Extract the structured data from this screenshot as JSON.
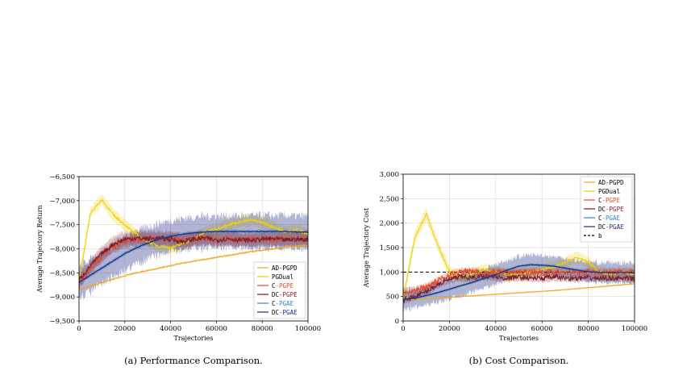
{
  "chart_data": [
    {
      "type": "line",
      "caption": "(a) Performance Comparison.",
      "xlabel": "Trajectories",
      "ylabel": "Average Trajectory Return",
      "xlim": [
        0,
        100000
      ],
      "ylim": [
        -9500,
        -6500
      ],
      "xticks": [
        0,
        20000,
        40000,
        60000,
        80000,
        100000
      ],
      "xtick_labels": [
        "0",
        "20000",
        "40000",
        "60000",
        "80000",
        "100000"
      ],
      "yticks": [
        -9500,
        -9000,
        -8500,
        -8000,
        -7500,
        -7000,
        -6500
      ],
      "ytick_labels": [
        "−9,500",
        "−9,000",
        "−8,500",
        "−8,000",
        "−7,500",
        "−7,000",
        "−6,500"
      ],
      "grid": true,
      "legend_position": "bottom-right",
      "x": [
        0,
        5000,
        10000,
        15000,
        20000,
        25000,
        30000,
        35000,
        40000,
        45000,
        50000,
        55000,
        60000,
        65000,
        70000,
        75000,
        80000,
        85000,
        90000,
        95000,
        100000
      ],
      "series": [
        {
          "name": "AD-PGPD",
          "color": "#f5a623",
          "band": 20,
          "noise": 12,
          "values": [
            -8850,
            -8780,
            -8700,
            -8630,
            -8560,
            -8500,
            -8450,
            -8400,
            -8350,
            -8300,
            -8260,
            -8220,
            -8180,
            -8140,
            -8100,
            -8060,
            -8030,
            -8000,
            -7970,
            -7940,
            -7920
          ]
        },
        {
          "name": "PGDual",
          "color": "#f0d000",
          "band": 120,
          "noise": 25,
          "values": [
            -8700,
            -7250,
            -6980,
            -7300,
            -7500,
            -7700,
            -7850,
            -7950,
            -7980,
            -7900,
            -7800,
            -7650,
            -7600,
            -7500,
            -7450,
            -7400,
            -7450,
            -7550,
            -7650,
            -7600,
            -7700
          ]
        },
        {
          "name": "C-PGPE",
          "color": "#e04a2a",
          "band": 130,
          "noise": 60,
          "values": [
            -8700,
            -8400,
            -8150,
            -7950,
            -7850,
            -7800,
            -7780,
            -7800,
            -7790,
            -7820,
            -7800,
            -7790,
            -7810,
            -7790,
            -7820,
            -7800,
            -7800,
            -7810,
            -7800,
            -7800,
            -7800
          ]
        },
        {
          "name": "DC-PGPE",
          "color": "#7a1f2b",
          "band": 150,
          "noise": 50,
          "values": [
            -8650,
            -8350,
            -8100,
            -7900,
            -7800,
            -7780,
            -7790,
            -7780,
            -7800,
            -7850,
            -7800,
            -7780,
            -7820,
            -7790,
            -7810,
            -7830,
            -7800,
            -7790,
            -7820,
            -7800,
            -7810
          ]
        },
        {
          "name": "C-PGAE",
          "color": "#2e86c1",
          "band": 40,
          "noise": 10,
          "values": [
            -8700,
            -8550,
            -8400,
            -8250,
            -8100,
            -7980,
            -7880,
            -7800,
            -7740,
            -7700,
            -7670,
            -7650,
            -7640,
            -7640,
            -7640,
            -7640,
            -7640,
            -7640,
            -7640,
            -7650,
            -7650
          ]
        },
        {
          "name": "DC-PGAE",
          "color": "#1f2a80",
          "band": 330,
          "noise": 8,
          "values": [
            -8700,
            -8550,
            -8400,
            -8250,
            -8100,
            -7980,
            -7880,
            -7800,
            -7740,
            -7700,
            -7670,
            -7650,
            -7640,
            -7640,
            -7640,
            -7640,
            -7640,
            -7640,
            -7640,
            -7650,
            -7650
          ]
        }
      ]
    },
    {
      "type": "line",
      "caption": "(b) Cost Comparison.",
      "xlabel": "Trajectories",
      "ylabel": "Average Trajectory Cost",
      "xlim": [
        0,
        100000
      ],
      "ylim": [
        0,
        3000
      ],
      "xticks": [
        0,
        20000,
        40000,
        60000,
        80000,
        100000
      ],
      "xtick_labels": [
        "0",
        "20000",
        "40000",
        "60000",
        "80000",
        "100000"
      ],
      "yticks": [
        0,
        500,
        1000,
        1500,
        2000,
        2500,
        3000
      ],
      "ytick_labels": [
        "0",
        "500",
        "1,000",
        "1,500",
        "2,000",
        "2,500",
        "3,000"
      ],
      "grid": true,
      "legend_position": "top-right",
      "threshold": {
        "name": "b",
        "value": 1000,
        "color": "#000000"
      },
      "x": [
        0,
        5000,
        10000,
        15000,
        20000,
        25000,
        30000,
        35000,
        40000,
        45000,
        50000,
        55000,
        60000,
        65000,
        70000,
        75000,
        80000,
        85000,
        90000,
        95000,
        100000
      ],
      "series": [
        {
          "name": "AD-PGPD",
          "color": "#f5a623",
          "band": 15,
          "noise": 5,
          "values": [
            430,
            440,
            455,
            470,
            485,
            500,
            515,
            530,
            545,
            560,
            575,
            590,
            605,
            620,
            640,
            660,
            680,
            700,
            720,
            740,
            760
          ]
        },
        {
          "name": "PGDual",
          "color": "#f0d000",
          "band": 120,
          "noise": 20,
          "values": [
            450,
            1700,
            2180,
            1550,
            1000,
            900,
            950,
            1050,
            1000,
            950,
            950,
            1000,
            1050,
            1100,
            1200,
            1300,
            1200,
            1000,
            950,
            1000,
            950
          ]
        },
        {
          "name": "C-PGPE",
          "color": "#e04a2a",
          "band": 80,
          "noise": 60,
          "values": [
            600,
            620,
            700,
            820,
            950,
            1000,
            1020,
            980,
            1010,
            990,
            1000,
            1010,
            990,
            1000,
            1010,
            990,
            1000,
            990,
            1000,
            1000,
            990
          ]
        },
        {
          "name": "DC-PGPE",
          "color": "#7a1f2b",
          "band": 80,
          "noise": 50,
          "values": [
            430,
            500,
            600,
            750,
            850,
            900,
            880,
            920,
            900,
            870,
            900,
            880,
            870,
            900,
            880,
            870,
            880,
            870,
            880,
            870,
            860
          ]
        },
        {
          "name": "C-PGAE",
          "color": "#2e86c1",
          "band": 30,
          "noise": 8,
          "values": [
            430,
            470,
            520,
            580,
            650,
            720,
            790,
            870,
            950,
            1040,
            1120,
            1150,
            1140,
            1120,
            1080,
            1040,
            1010,
            990,
            990,
            990,
            980
          ]
        },
        {
          "name": "DC-PGAE",
          "color": "#1f2a80",
          "band": 200,
          "noise": 6,
          "values": [
            430,
            470,
            520,
            580,
            650,
            720,
            790,
            870,
            950,
            1040,
            1120,
            1150,
            1140,
            1120,
            1080,
            1040,
            1010,
            990,
            990,
            990,
            980
          ]
        }
      ]
    }
  ]
}
